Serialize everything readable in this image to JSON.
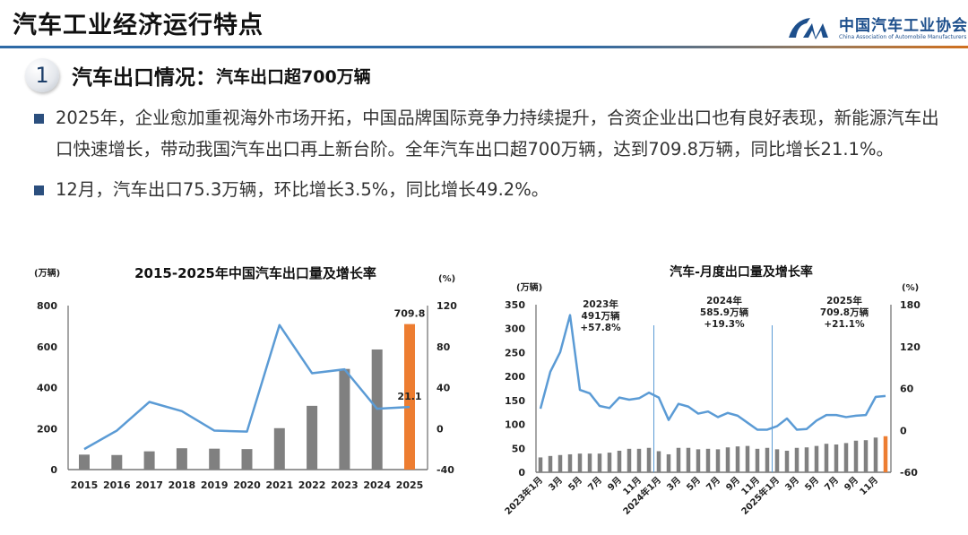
{
  "header": {
    "title": "汽车工业经济运行特点",
    "logo_cn": "中国汽车工业协会",
    "logo_en": "China Association of Automobile Manufacturers"
  },
  "section": {
    "number": "1",
    "title": "汽车出口情况：",
    "subtitle": "汽车出口超700万辆"
  },
  "bullets": [
    "2025年，企业愈加重视海外市场开拓，中国品牌国际竞争力持续提升，合资企业出口也有良好表现，新能源汽车出口快速增长，带动我国汽车出口再上新台阶。全年汽车出口超700万辆，达到709.8万辆，同比增长21.1%。",
    "12月，汽车出口75.3万辆，环比增长3.5%，同比增长49.2%。"
  ],
  "colors": {
    "bar": "#808080",
    "highlight": "#ed7d31",
    "line": "#5b9bd5",
    "bullet": "#2b4f7e",
    "brand": "#1d4f8c"
  },
  "chart_data": [
    {
      "type": "bar+line",
      "title": "2015-2025年中国汽车出口量及增长率",
      "ylabel": "(万辆)",
      "y2label": "(%)",
      "categories": [
        "2015",
        "2016",
        "2017",
        "2018",
        "2019",
        "2020",
        "2021",
        "2022",
        "2023",
        "2024",
        "2025"
      ],
      "series": [
        {
          "type": "bar",
          "axis": "left",
          "values": [
            73,
            71,
            89,
            104,
            102,
            100,
            202,
            311,
            491,
            585.9,
            709.8
          ]
        },
        {
          "type": "line",
          "axis": "right",
          "values": [
            -20,
            -2,
            26,
            17,
            -2,
            -3,
            101,
            54,
            57.8,
            19.3,
            21.1
          ]
        }
      ],
      "ylim": [
        0,
        800
      ],
      "yticks": [
        "0",
        "200",
        "400",
        "600",
        "800"
      ],
      "y2lim": [
        -40,
        120
      ],
      "y2ticks": [
        "-40",
        "0",
        "40",
        "80",
        "120"
      ],
      "data_labels": {
        "bar_last": "709.8",
        "line_last": "21.1"
      },
      "highlight_index": 10,
      "grid": false
    },
    {
      "type": "bar+line",
      "title": "汽车-月度出口量及增长率",
      "ylabel": "(万辆)",
      "y2label": "(%)",
      "categories": [
        "2023年1月",
        "2月",
        "3月",
        "4月",
        "5月",
        "6月",
        "7月",
        "8月",
        "9月",
        "10月",
        "11月",
        "12月",
        "2024年1月",
        "2月",
        "3月",
        "4月",
        "5月",
        "6月",
        "7月",
        "8月",
        "9月",
        "10月",
        "11月",
        "12月",
        "2025年1月",
        "2月",
        "3月",
        "4月",
        "5月",
        "6月",
        "7月",
        "8月",
        "9月",
        "10月",
        "11月",
        "12月"
      ],
      "tick_labels": [
        "2023年1月",
        "3月",
        "5月",
        "7月",
        "9月",
        "11月",
        "2024年1月",
        "3月",
        "5月",
        "7月",
        "9月",
        "11月",
        "2025年1月",
        "3月",
        "5月",
        "7月",
        "9月",
        "11月"
      ],
      "series": [
        {
          "type": "bar",
          "axis": "left",
          "values": [
            31,
            34,
            36,
            37.5,
            39,
            39,
            39,
            41,
            45,
            49,
            49,
            51,
            44,
            37.5,
            51,
            51,
            48,
            49,
            48,
            52,
            54,
            55,
            49,
            51,
            48,
            45,
            51,
            52,
            55,
            59.5,
            58,
            61,
            66,
            67,
            72.5,
            75.3
          ]
        },
        {
          "type": "line",
          "axis": "right",
          "values": [
            31,
            84,
            112,
            165,
            58,
            53,
            35,
            32,
            47,
            44,
            46,
            54,
            47,
            15,
            38,
            34,
            24,
            27,
            19,
            25,
            21,
            11,
            1,
            1,
            6,
            17,
            1,
            2,
            14,
            22,
            22,
            19,
            21,
            22,
            48,
            49.2
          ]
        }
      ],
      "ylim": [
        0,
        350
      ],
      "yticks": [
        "0",
        "50",
        "100",
        "150",
        "200",
        "250",
        "300",
        "350"
      ],
      "y2lim": [
        -60,
        180
      ],
      "y2ticks": [
        "-60",
        "0",
        "60",
        "120",
        "180"
      ],
      "annotations": [
        {
          "year": "2023年",
          "volume": "491万辆",
          "growth": "+57.8%"
        },
        {
          "year": "2024年",
          "volume": "585.9万辆",
          "growth": "+19.3%"
        },
        {
          "year": "2025年",
          "volume": "709.8万辆",
          "growth": "+21.1%"
        }
      ],
      "highlight_index": 35,
      "grid": false
    }
  ]
}
